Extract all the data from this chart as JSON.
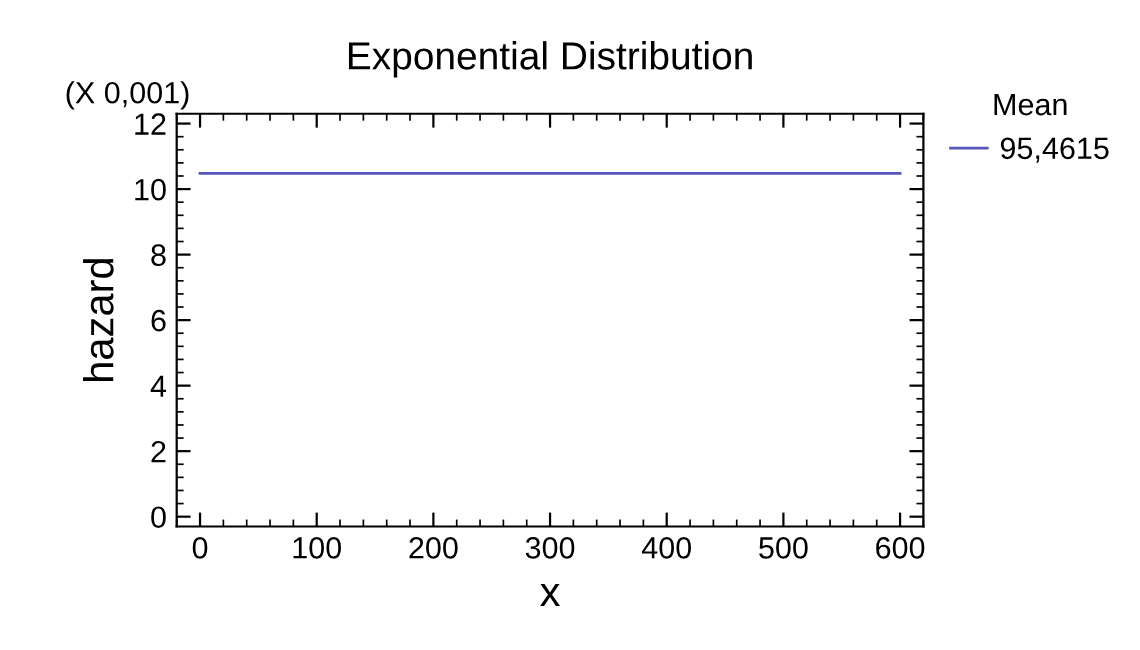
{
  "chart_data": {
    "type": "line",
    "title": "Exponential Distribution",
    "xlabel": "x",
    "ylabel": "hazard",
    "legend_title": "Mean",
    "annotations": [
      "(X 0,001)"
    ],
    "series": [
      {
        "name": "95,4615",
        "color": "#5555bb",
        "x": [
          0,
          600
        ],
        "values": [
          10.48,
          10.48
        ]
      }
    ],
    "xlim": [
      -20,
      620
    ],
    "xticks": [
      0,
      100,
      200,
      300,
      400,
      500,
      600
    ],
    "ylim": [
      -0.3,
      12.3
    ],
    "yticks": [
      0,
      2,
      4,
      6,
      8,
      10,
      12
    ],
    "grid": false,
    "legend": "right",
    "marker": "none",
    "line_style": "solid"
  }
}
